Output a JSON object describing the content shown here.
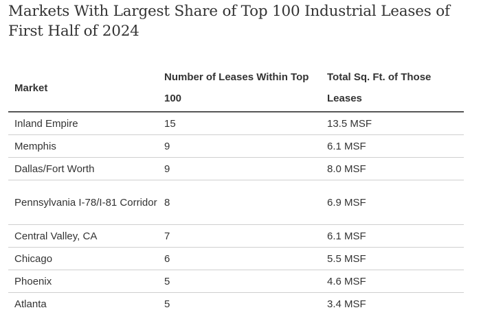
{
  "title": "Markets With Largest Share of Top 100 Industrial Leases of First Half of 2024",
  "table": {
    "headers": {
      "market": "Market",
      "leases": "Number of Leases Within Top 100",
      "sqft": "Total Sq. Ft. of Those Leases"
    },
    "rows": [
      {
        "market": "Inland Empire",
        "leases": "15",
        "sqft": "13.5 MSF"
      },
      {
        "market": "Memphis",
        "leases": "9",
        "sqft": "6.1 MSF"
      },
      {
        "market": "Dallas/Fort Worth",
        "leases": "9",
        "sqft": "8.0 MSF"
      },
      {
        "market": "Pennsylvania I-78/I-81 Corridor",
        "leases": "8",
        "sqft": "6.9 MSF"
      },
      {
        "market": "Central Valley, CA",
        "leases": "7",
        "sqft": "6.1 MSF"
      },
      {
        "market": "Chicago",
        "leases": "6",
        "sqft": "5.5 MSF"
      },
      {
        "market": "Phoenix",
        "leases": "5",
        "sqft": "4.6 MSF"
      },
      {
        "market": "Atlanta",
        "leases": "5",
        "sqft": "3.4 MSF"
      }
    ]
  }
}
